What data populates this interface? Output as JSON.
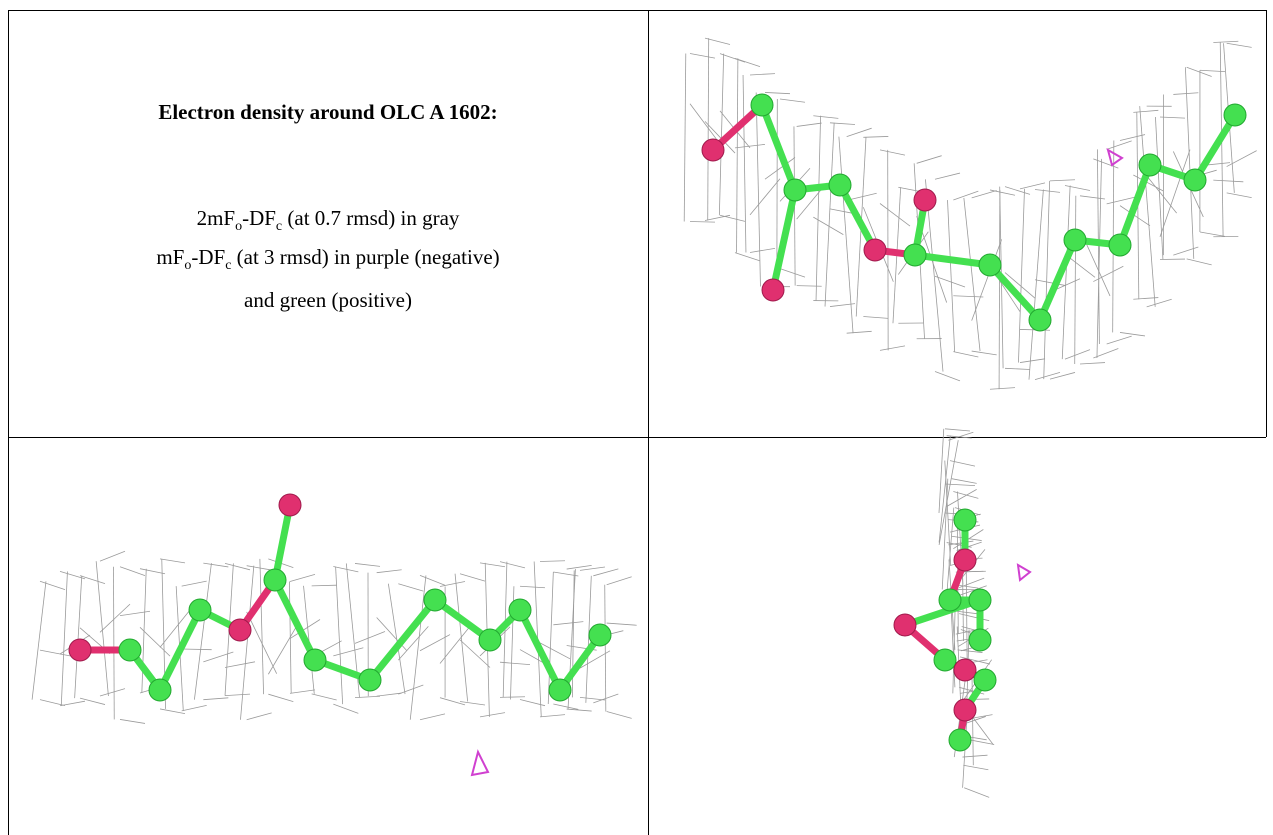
{
  "caption": {
    "title": "Electron density around OLC A 1602:",
    "line1": [
      "2mF",
      "o",
      "-DF",
      "c",
      " (at 0.7 rmsd) in gray"
    ],
    "line2": [
      "mF",
      "o",
      "-DF",
      "c",
      " (at 3 rmsd) in purple (negative)"
    ],
    "line3": "and green (positive)"
  }
}
